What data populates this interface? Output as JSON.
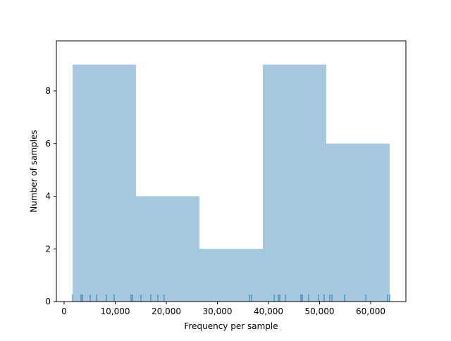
{
  "chart_data": {
    "type": "histogram",
    "x_label": "Frequency per sample",
    "y_label": "Number of samples",
    "bins": [
      1655,
      14069,
      26483,
      38897,
      51310,
      63724
    ],
    "counts": [
      9,
      4,
      2,
      9,
      6
    ],
    "color": "#a6c8df",
    "rug": [
      1655,
      3310,
      3586,
      5103,
      6345,
      8276,
      9793,
      13103,
      13379,
      15034,
      16966,
      18345,
      19586,
      36276,
      36690,
      41103,
      41931,
      42207,
      43310,
      46345,
      46621,
      47862,
      49793,
      50897,
      52000,
      52414,
      54897,
      59034,
      63310,
      63724
    ],
    "rug_color": "#1f77b4",
    "xlim": [
      -1517,
      66897
    ],
    "xticks": [
      0,
      {
        "value": 10000,
        "label": "10,000"
      },
      {
        "value": 20000,
        "label": "20,000"
      },
      {
        "value": 30000,
        "label": "30,000"
      },
      {
        "value": 40000,
        "label": "40,000"
      },
      {
        "value": 50000,
        "label": "50,000"
      },
      {
        "value": 60000,
        "label": "60,000"
      }
    ],
    "ylim": [
      0,
      9.9
    ],
    "yticks": [
      0,
      2,
      4,
      6,
      8
    ]
  }
}
